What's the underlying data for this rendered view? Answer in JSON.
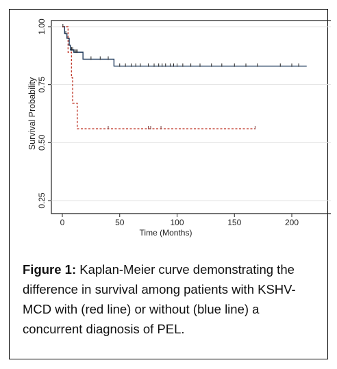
{
  "caption": {
    "label": "Figure 1:",
    "text": " Kaplan-Meier curve demonstrating the difference in survival among patients with KSHV-MCD with (red line) or without (blue line) a concurrent diagnosis of PEL."
  },
  "chart_data": {
    "type": "line",
    "title": "",
    "xlabel": "Time (Months)",
    "ylabel": "Survival Probability",
    "xlim": [
      0,
      215
    ],
    "ylim": [
      0,
      1.0
    ],
    "xticks": [
      0,
      50,
      100,
      150,
      200
    ],
    "yticks": [
      0.25,
      0.5,
      0.75,
      1.0
    ],
    "ytick_labels": [
      "0.25",
      "0.50",
      "0.75",
      "1.00"
    ],
    "grid": "horizontal",
    "series": [
      {
        "color": "#1f3a5c",
        "style": "solid step",
        "steps": [
          [
            0,
            1.0
          ],
          [
            2,
            0.97
          ],
          [
            4,
            0.95
          ],
          [
            6,
            0.92
          ],
          [
            7,
            0.9
          ],
          [
            10,
            0.89
          ],
          [
            18,
            0.86
          ],
          [
            45,
            0.83
          ],
          [
            213,
            0.83
          ]
        ],
        "censor_times": [
          3,
          5,
          8,
          9,
          11,
          12,
          13,
          25,
          33,
          40,
          50,
          55,
          60,
          64,
          68,
          75,
          80,
          84,
          87,
          90,
          94,
          97,
          100,
          105,
          112,
          120,
          130,
          139,
          150,
          160,
          170,
          190,
          200,
          206
        ]
      },
      {
        "color": "#c0392b",
        "style": "dashed step",
        "steps": [
          [
            0,
            1.0
          ],
          [
            5,
            0.89
          ],
          [
            8,
            0.78
          ],
          [
            9,
            0.67
          ],
          [
            13,
            0.56
          ],
          [
            168,
            0.56
          ]
        ],
        "censor_times": [
          40,
          75,
          77,
          86,
          168
        ]
      }
    ]
  }
}
